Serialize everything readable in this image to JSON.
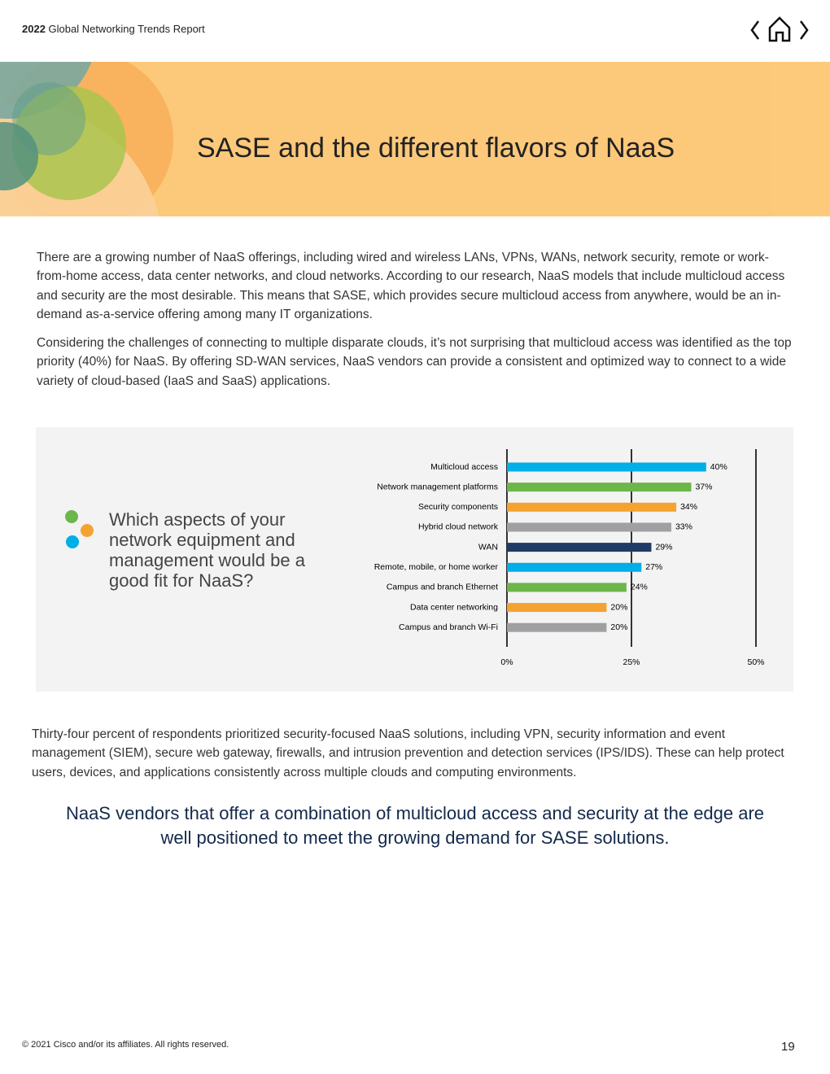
{
  "header": {
    "year": "2022",
    "title": "Global Networking Trends Report"
  },
  "banner": {
    "title": "SASE and the different flavors of NaaS"
  },
  "body": {
    "paragraphs": [
      "There are a growing number of NaaS offerings, including wired and wireless LANs, VPNs, WANs, network security, remote or work-from-home access, data center networks, and cloud networks. According to our research, NaaS models that include multicloud access and security are the most desirable. This means that SASE, which provides secure multicloud access from anywhere, would be an in-demand as-a-service offering among many IT organizations.",
      "Considering the challenges of connecting to multiple disparate clouds, it’s not surprising that multicloud access was identified as the top priority (40%) for NaaS. By offering SD-WAN services, NaaS vendors can provide a consistent and optimized way to connect to a wide variety of cloud-based (IaaS and SaaS) applications.",
      "Thirty-four percent of respondents prioritized security-focused NaaS solutions, including VPN, security information and event management (SIEM), secure web gateway, firewalls, and intrusion prevention and detection services (IPS/IDS). These can help protect users, devices, and applications consistently across multiple clouds and computing environments."
    ],
    "quote": "NaaS vendors that offer a combination of multicloud access and security at the edge are well positioned to meet the growing demand for SASE solutions."
  },
  "chart_data": {
    "type": "hbar",
    "title": "Which aspects of your network equipment and management would be a good fit for NaaS?",
    "categories": [
      "Multicloud access",
      "Network management platforms",
      "Security components",
      "Hybrid cloud network",
      "WAN",
      "Remote, mobile, or home worker",
      "Campus and branch Ethernet",
      "Data center networking",
      "Campus and branch Wi-Fi"
    ],
    "values": [
      40,
      37,
      34,
      33,
      29,
      27,
      24,
      20,
      20
    ],
    "value_labels": [
      "40%",
      "37%",
      "34%",
      "33%",
      "29%",
      "27%",
      "24%",
      "20%",
      "20%"
    ],
    "colors": [
      "#00aee8",
      "#6cb64a",
      "#f4a330",
      "#a0a0a2",
      "#1f3a64",
      "#00aee8",
      "#6cb64a",
      "#f4a330",
      "#a0a0a2"
    ],
    "xlim": [
      0,
      50
    ],
    "xticks": [
      {
        "value": 0,
        "label": "0%"
      },
      {
        "value": 25,
        "label": "25%"
      },
      {
        "value": 50,
        "label": "50%"
      }
    ],
    "grid": true
  },
  "footer": {
    "copyright": "© 2021 Cisco and/or its affiliates. All rights reserved.",
    "page": "19"
  }
}
